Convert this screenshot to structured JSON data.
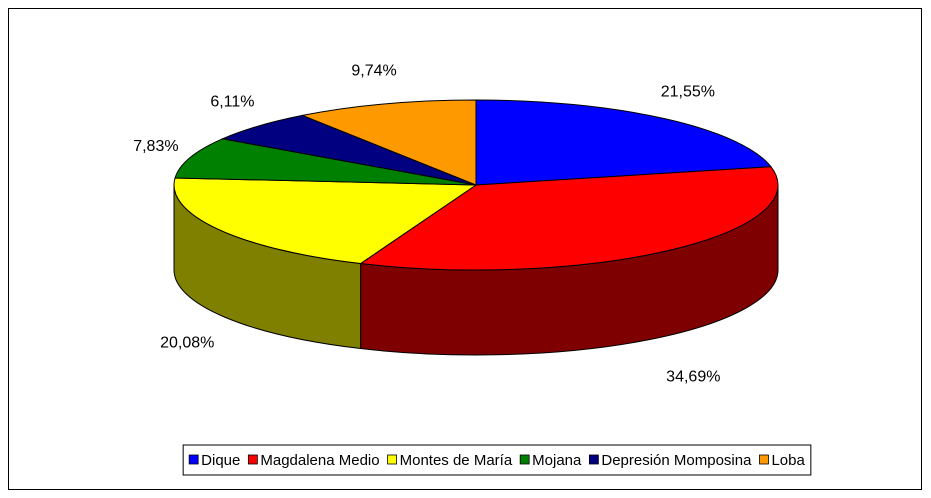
{
  "chart_data": {
    "type": "pie3d",
    "categories": [
      "Dique",
      "Magdalena Medio",
      "Montes de María",
      "Mojana",
      "Depresión Momposina",
      "Loba"
    ],
    "values": [
      21.55,
      34.69,
      20.08,
      7.83,
      6.11,
      9.74
    ],
    "value_labels": [
      "21,55%",
      "34,69%",
      "20,08%",
      "7,83%",
      "6,11%",
      "9,74%"
    ],
    "colors": [
      "#0000ff",
      "#ff0000",
      "#ffff00",
      "#008000",
      "#000080",
      "#ff9900"
    ],
    "legend": "bottom"
  }
}
